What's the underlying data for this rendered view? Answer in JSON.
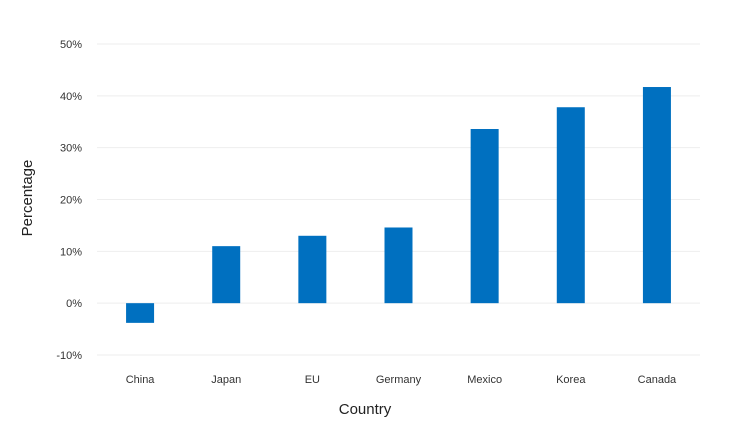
{
  "chart_data": {
    "type": "bar",
    "categories": [
      "China",
      "Japan",
      "EU",
      "Germany",
      "Mexico",
      "Korea",
      "Canada"
    ],
    "values": [
      -3.8,
      11.0,
      13.0,
      14.6,
      33.6,
      37.8,
      41.7
    ],
    "xlabel": "Country",
    "ylabel": "Percentage",
    "ylim": [
      -10,
      50
    ],
    "yticks": [
      -10,
      0,
      10,
      20,
      30,
      40,
      50
    ],
    "ytick_labels": [
      "-10%",
      "0%",
      "10%",
      "20%",
      "30%",
      "40%",
      "50%"
    ],
    "grid": true,
    "bar_color": "#0070c0"
  }
}
